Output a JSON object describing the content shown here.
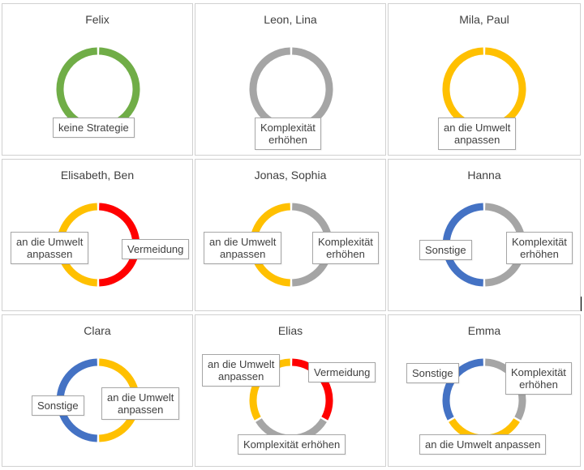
{
  "colors": {
    "keine Strategie": "#70ad47",
    "Komplexität erhöhen": "#a5a5a5",
    "an die Umwelt anpassen": "#ffc000",
    "Vermeidung": "#ff0000",
    "Sonstige": "#4472c4"
  },
  "chart_data": [
    {
      "type": "pie",
      "title": "Felix",
      "slices": [
        {
          "label": "keine Strategie",
          "value": 1,
          "lines": [
            "keine Strategie"
          ]
        }
      ]
    },
    {
      "type": "pie",
      "title": "Leon, Lina",
      "slices": [
        {
          "label": "Komplexität erhöhen",
          "value": 1,
          "lines": [
            "Komplexität",
            "erhöhen"
          ]
        }
      ]
    },
    {
      "type": "pie",
      "title": "Mila, Paul",
      "slices": [
        {
          "label": "an die Umwelt anpassen",
          "value": 1,
          "lines": [
            "an die Umwelt",
            "anpassen"
          ]
        }
      ]
    },
    {
      "type": "pie",
      "title": "Elisabeth, Ben",
      "slices": [
        {
          "label": "Vermeidung",
          "value": 1,
          "lines": [
            "Vermeidung"
          ]
        },
        {
          "label": "an die Umwelt anpassen",
          "value": 1,
          "lines": [
            "an die Umwelt",
            "anpassen"
          ]
        }
      ]
    },
    {
      "type": "pie",
      "title": "Jonas, Sophia",
      "slices": [
        {
          "label": "Komplexität erhöhen",
          "value": 1,
          "lines": [
            "Komplexität",
            "erhöhen"
          ]
        },
        {
          "label": "an die Umwelt anpassen",
          "value": 1,
          "lines": [
            "an die Umwelt",
            "anpassen"
          ]
        }
      ]
    },
    {
      "type": "pie",
      "title": "Hanna",
      "slices": [
        {
          "label": "Komplexität erhöhen",
          "value": 1,
          "lines": [
            "Komplexität",
            "erhöhen"
          ]
        },
        {
          "label": "Sonstige",
          "value": 1,
          "lines": [
            "Sonstige"
          ]
        }
      ]
    },
    {
      "type": "pie",
      "title": "Clara",
      "slices": [
        {
          "label": "an die Umwelt anpassen",
          "value": 1,
          "lines": [
            "an die Umwelt",
            "anpassen"
          ]
        },
        {
          "label": "Sonstige",
          "value": 1,
          "lines": [
            "Sonstige"
          ]
        }
      ]
    },
    {
      "type": "pie",
      "title": "Elias",
      "slices": [
        {
          "label": "Vermeidung",
          "value": 1,
          "lines": [
            "Vermeidung"
          ]
        },
        {
          "label": "Komplexität erhöhen",
          "value": 1,
          "lines": [
            "Komplexität erhöhen"
          ]
        },
        {
          "label": "an die Umwelt anpassen",
          "value": 1,
          "lines": [
            "an die Umwelt",
            "anpassen"
          ]
        }
      ]
    },
    {
      "type": "pie",
      "title": "Emma",
      "slices": [
        {
          "label": "Komplexität erhöhen",
          "value": 1,
          "lines": [
            "Komplexität",
            "erhöhen"
          ]
        },
        {
          "label": "an die Umwelt anpassen",
          "value": 1,
          "lines": [
            "an die Umwelt anpassen"
          ]
        },
        {
          "label": "Sonstige",
          "value": 1,
          "lines": [
            "Sonstige"
          ]
        }
      ]
    }
  ]
}
